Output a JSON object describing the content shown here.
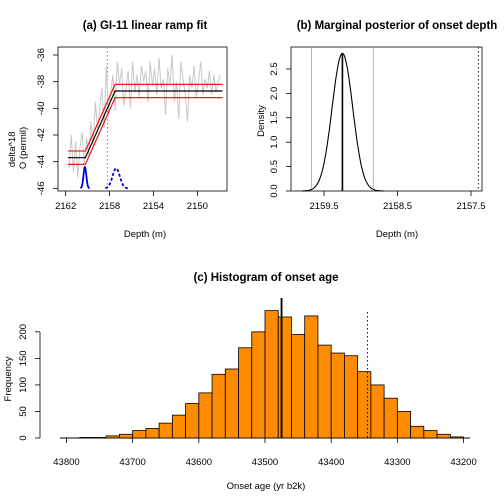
{
  "chart_data": [
    {
      "type": "line",
      "title": "(a) GI-11 linear ramp fit",
      "xlabel": "Depth (m)",
      "ylabel": "delta^18\nO (permil)",
      "xlim": [
        2162.7,
        2147.3
      ],
      "ylim": [
        -46.2,
        -35.4
      ],
      "xticks": [
        2162,
        2158,
        2154,
        2150
      ],
      "yticks": [
        -36,
        -38,
        -40,
        -42,
        -44,
        -46
      ],
      "onset_depth_marker": 2158.2,
      "ramp_fit": {
        "x": [
          2161.8,
          2160.2,
          2157.5,
          2147.7
        ],
        "y": [
          -43.7,
          -43.7,
          -38.7,
          -38.7
        ],
        "band_offsets": [
          0.5,
          -0.5
        ]
      },
      "raw_data": {
        "x": [
          2161.7,
          2161.5,
          2161.3,
          2161.1,
          2160.9,
          2160.7,
          2160.5,
          2160.3,
          2160.1,
          2159.9,
          2159.7,
          2159.5,
          2159.3,
          2159.1,
          2158.9,
          2158.7,
          2158.5,
          2158.3,
          2158.1,
          2157.9,
          2157.7,
          2157.5,
          2157.3,
          2157.1,
          2156.9,
          2156.7,
          2156.5,
          2156.3,
          2156.1,
          2155.9,
          2155.7,
          2155.5,
          2155.3,
          2155.1,
          2154.9,
          2154.7,
          2154.5,
          2154.3,
          2154.1,
          2153.9,
          2153.7,
          2153.5,
          2153.3,
          2153.1,
          2152.9,
          2152.7,
          2152.5,
          2152.3,
          2152.1,
          2151.9,
          2151.7,
          2151.5,
          2151.3,
          2151.1,
          2150.9,
          2150.7,
          2150.5,
          2150.3,
          2150.1,
          2149.9,
          2149.7,
          2149.5,
          2149.3,
          2149.1,
          2148.9,
          2148.7,
          2148.5,
          2148.3,
          2148.1,
          2147.9
        ],
        "y": [
          -44.5,
          -42.0,
          -44.8,
          -42.5,
          -45.2,
          -43.0,
          -41.8,
          -44.2,
          -42.2,
          -43.5,
          -41.0,
          -42.8,
          -39.5,
          -41.5,
          -40.0,
          -38.5,
          -41.5,
          -36.8,
          -40.5,
          -38.8,
          -37.5,
          -40.2,
          -36.5,
          -38.2,
          -37.0,
          -39.8,
          -38.5,
          -37.2,
          -40.0,
          -36.5,
          -38.8,
          -37.5,
          -39.2,
          -36.8,
          -38.0,
          -37.2,
          -39.5,
          -36.5,
          -38.3,
          -37.0,
          -39.0,
          -36.2,
          -38.5,
          -37.8,
          -40.5,
          -37.0,
          -38.2,
          -36.0,
          -39.5,
          -38.0,
          -40.8,
          -36.5,
          -37.8,
          -39.0,
          -41.0,
          -37.5,
          -38.5,
          -36.8,
          -39.2,
          -38.0,
          -36.5,
          -39.0,
          -37.8,
          -38.5,
          -37.2,
          -39.0,
          -37.5,
          -38.8,
          -38.0,
          -37.5
        ]
      },
      "density_curves": [
        {
          "center": 2160.25,
          "sd": 0.13,
          "baseline": -46.0,
          "height": 1.6,
          "style": "solid"
        },
        {
          "center": 2157.4,
          "sd": 0.33,
          "baseline": -46.0,
          "height": 1.5,
          "style": "dashed"
        }
      ],
      "colors": {
        "raw": "#c8c8c8",
        "ramp_band": "#ee0000",
        "ramp_mean": "#000000",
        "density": "#0000dd",
        "marker": "#777777"
      }
    },
    {
      "type": "line",
      "title": "(b) Marginal posterior of onset depth",
      "xlabel": "Depth (m)",
      "ylabel": "Density",
      "xlim": [
        2159.95,
        2157.35
      ],
      "ylim": [
        0,
        2.95
      ],
      "xticks": [
        2159.5,
        2158.5,
        2157.5
      ],
      "yticks": [
        0.0,
        0.5,
        1.0,
        1.5,
        2.0,
        2.5
      ],
      "posterior": {
        "mean": 2159.25,
        "sd": 0.14,
        "peak_density": 2.82
      },
      "vlines": {
        "mean": 2159.25,
        "interval": [
          2159.67,
          2158.83
        ],
        "reference": 2157.4
      }
    },
    {
      "type": "bar",
      "title": "(c) Histogram of onset age",
      "xlabel": "Onset age (yr b2k)",
      "ylabel": "Frequency",
      "xlim": [
        43840,
        43160
      ],
      "ylim": [
        0,
        260
      ],
      "xticks": [
        43800,
        43700,
        43600,
        43500,
        43400,
        43300,
        43200
      ],
      "yticks": [
        0,
        50,
        100,
        150,
        200
      ],
      "bins": [
        43780,
        43760,
        43740,
        43720,
        43700,
        43680,
        43660,
        43640,
        43620,
        43600,
        43580,
        43560,
        43540,
        43520,
        43500,
        43480,
        43460,
        43440,
        43420,
        43400,
        43380,
        43360,
        43340,
        43320,
        43300,
        43280,
        43260,
        43240,
        43220
      ],
      "values": [
        1,
        1,
        4,
        7,
        14,
        18,
        28,
        43,
        65,
        85,
        120,
        130,
        170,
        200,
        240,
        228,
        195,
        230,
        175,
        160,
        155,
        125,
        100,
        75,
        50,
        22,
        14,
        7,
        2
      ],
      "vlines": {
        "mean": 43475,
        "reference": 43345
      },
      "colors": {
        "bar": "#ff8c00"
      }
    }
  ]
}
